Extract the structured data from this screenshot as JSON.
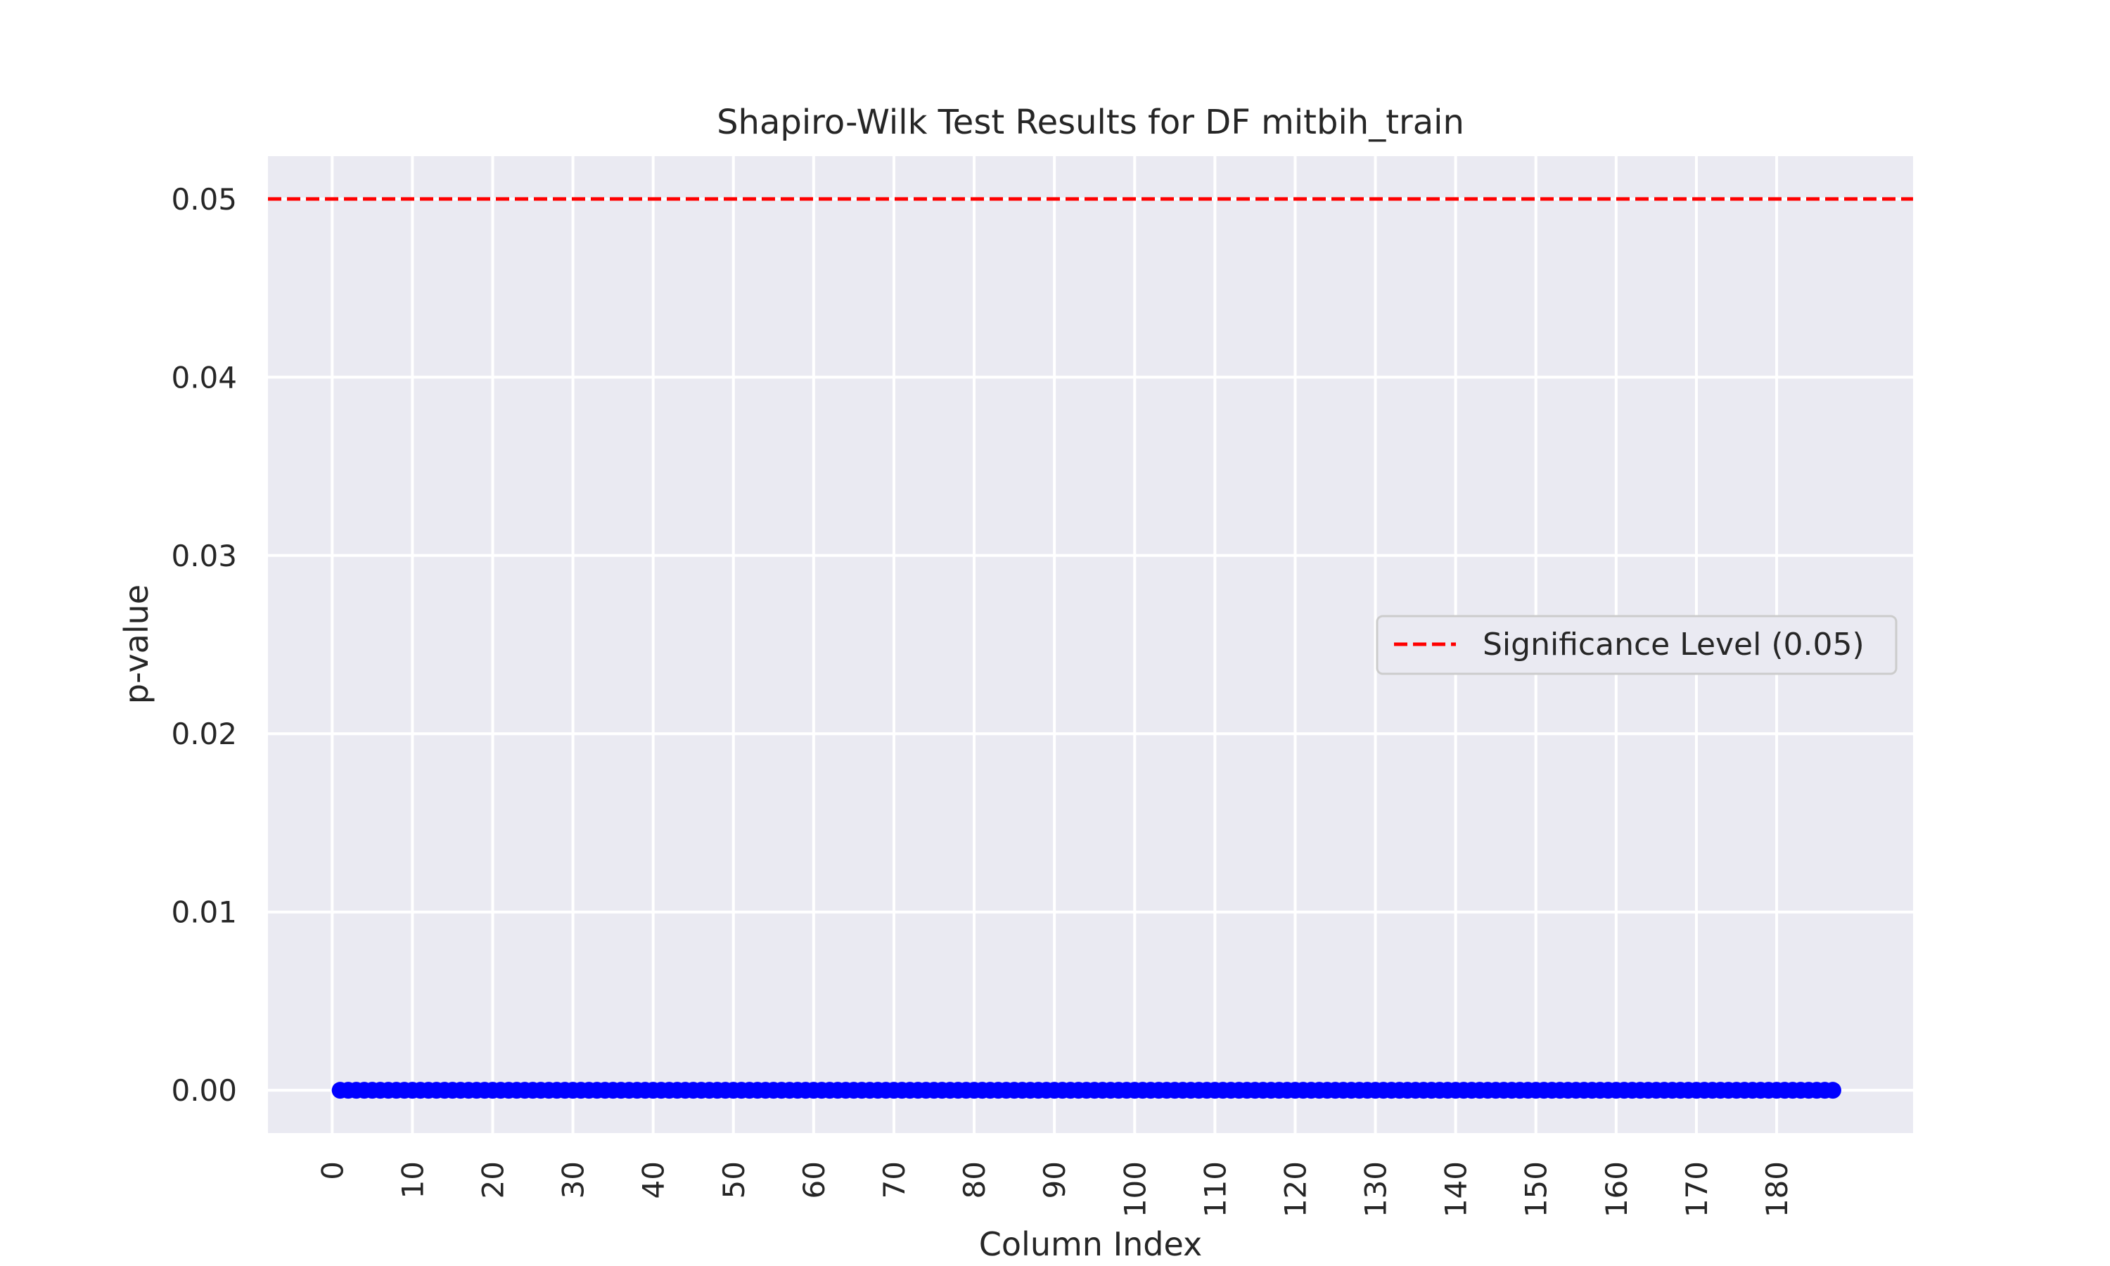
{
  "chart_data": {
    "type": "scatter",
    "title": "Shapiro-Wilk Test Results for DF mitbih_train",
    "xlabel": "Column Index",
    "ylabel": "p-value",
    "x_ticks": [
      0,
      10,
      20,
      30,
      40,
      50,
      60,
      70,
      80,
      90,
      100,
      110,
      120,
      130,
      140,
      150,
      160,
      170,
      180
    ],
    "y_ticks": [
      "0.00",
      "0.01",
      "0.02",
      "0.03",
      "0.04",
      "0.05"
    ],
    "xlim": [
      -8,
      197
    ],
    "ylim": [
      -0.0024,
      0.0524
    ],
    "grid": true,
    "background": "#eaeaf2",
    "series": [
      {
        "type": "scatter",
        "color": "#0000ff",
        "x_start": 1,
        "x_end": 187,
        "y": 0.0
      }
    ],
    "reference_lines": [
      {
        "orientation": "horizontal",
        "y": 0.05,
        "color": "#ff0000",
        "style": "dashed",
        "label": "Significance Level (0.05)"
      }
    ],
    "legend_placement": "center-right"
  }
}
